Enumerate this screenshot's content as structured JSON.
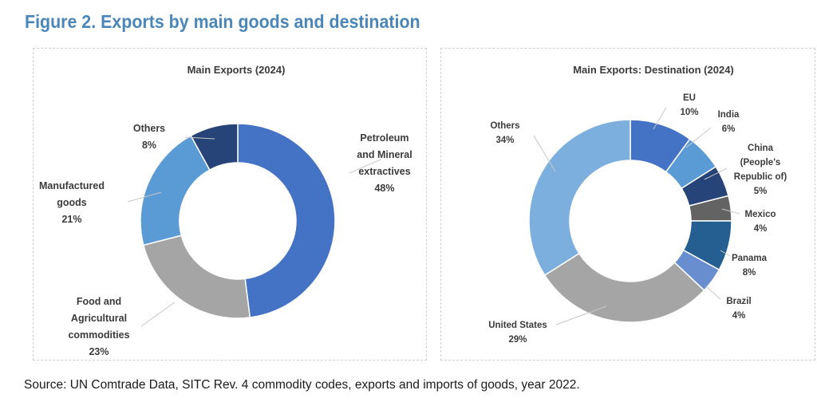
{
  "figure_title": "Figure  2. Exports by main goods and destination",
  "source": "Source: UN Comtrade Data, SITC Rev. 4 commodity codes, exports and imports of goods, year 2022.",
  "chart_data": [
    {
      "type": "pie",
      "donut": true,
      "title": "Main Exports (2024)",
      "slices": [
        {
          "key": "petroleum",
          "label_lines": [
            "Petroleum",
            "and Mineral",
            "extractives"
          ],
          "pct_label": "48%",
          "value": 48,
          "color": "#4472c4"
        },
        {
          "key": "food",
          "label_lines": [
            "Food and",
            "Agricultural",
            "commodities"
          ],
          "pct_label": "23%",
          "value": 23,
          "color": "#a5a5a5"
        },
        {
          "key": "manufactured",
          "label_lines": [
            "Manufactured",
            "goods"
          ],
          "pct_label": "21%",
          "value": 21,
          "color": "#5b9bd5"
        },
        {
          "key": "others",
          "label_lines": [
            "Others"
          ],
          "pct_label": "8%",
          "value": 8,
          "color": "#264478"
        }
      ]
    },
    {
      "type": "pie",
      "donut": true,
      "title": "Main Exports: Destination (2024)",
      "slices": [
        {
          "key": "eu",
          "label_lines": [
            "EU"
          ],
          "pct_label": "10%",
          "value": 10,
          "color": "#4472c4"
        },
        {
          "key": "india",
          "label_lines": [
            "India"
          ],
          "pct_label": "6%",
          "value": 6,
          "color": "#5b9bd5"
        },
        {
          "key": "china",
          "label_lines": [
            "China",
            "(People's",
            "Republic of)"
          ],
          "pct_label": "5%",
          "value": 5,
          "color": "#264478"
        },
        {
          "key": "mexico",
          "label_lines": [
            "Mexico"
          ],
          "pct_label": "4%",
          "value": 4,
          "color": "#636363"
        },
        {
          "key": "panama",
          "label_lines": [
            "Panama"
          ],
          "pct_label": "8%",
          "value": 8,
          "color": "#255e91"
        },
        {
          "key": "brazil",
          "label_lines": [
            "Brazil"
          ],
          "pct_label": "4%",
          "value": 4,
          "color": "#698ed0"
        },
        {
          "key": "us",
          "label_lines": [
            "United States"
          ],
          "pct_label": "29%",
          "value": 29,
          "color": "#a5a5a5"
        },
        {
          "key": "others",
          "label_lines": [
            "Others"
          ],
          "pct_label": "34%",
          "value": 34,
          "color": "#7cafdd"
        }
      ]
    }
  ]
}
